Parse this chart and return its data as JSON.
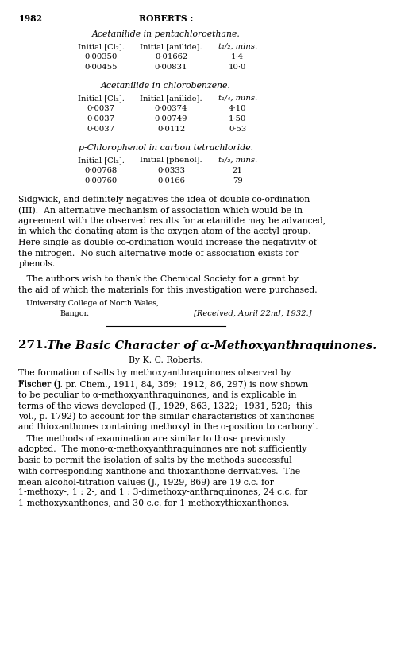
{
  "page_number": "1982",
  "header_center": "ROBERTS :",
  "bg_color": "#ffffff",
  "section1_title": "Acetanilide in pentachloroethane.",
  "section1_col1_header": "Initial [Cl₂].",
  "section1_col2_header": "Initial [anilide].",
  "section1_col3_header": "t₁/₂, mins.",
  "section1_data": [
    [
      "0·00350",
      "0·01662",
      "1·4"
    ],
    [
      "0·00455",
      "0·00831",
      "10·0"
    ]
  ],
  "section2_title": "Acetanilide in chlorobenzene.",
  "section2_col1_header": "Initial [Cl₂].",
  "section2_col2_header": "Initial [anilide].",
  "section2_col3_header": "t₁/₄, mins.",
  "section2_data": [
    [
      "0·0037",
      "0·00374",
      "4·10"
    ],
    [
      "0·0037",
      "0·00749",
      "1·50"
    ],
    [
      "0·0037",
      "0·0112",
      "0·53"
    ]
  ],
  "section3_title": "p-Chlorophenol in carbon tetrachloride.",
  "section3_col1_header": "Initial [Cl₂].",
  "section3_col2_header": "Initial [phenol].",
  "section3_col3_header": "t₁/₂, mins.",
  "section3_data": [
    [
      "0·00768",
      "0·0333",
      "21"
    ],
    [
      "0·00760",
      "0·0166",
      "79"
    ]
  ],
  "paragraph1": "Sidgwick, and definitely negatives the idea of double co-ordination (III).  An alternative mechanism of association which would be in agreement with the observed results for acetanilide may be advanced, in which the donating atom is the oxygen atom of the acetyl group. Here single as double co-ordination would increase the negativity of the nitrogen.  No such alternative mode of association exists for phenols.",
  "paragraph2": "   The authors wish to thank the Chemical Society for a grant by the aid of which the materials for this investigation were purchased.",
  "institution1": "University College of North Wales,",
  "institution2": "Bangor.",
  "received": "[Received, April 22nd, 1932.]",
  "article_num": "271.",
  "article_title": "The Basic Character of α-Methoxyanthraquinones.",
  "article_author": "By K. C. Roberts.",
  "body_para1_line1": "The formation of salts by methoxyanthraquinones observed by",
  "body_para1": "The formation of salts by methoxyanthraquinones observed by Fischer (J. pr. Chem., 1911, 84, 369;  1912, 86, 297) is now shown to be peculiar to α-methoxyanthraquinones, and is explicable in terms of the views developed (J., 1929, 863, 1322;  1931, 520;  this vol., p. 1792) to account for the similar characteristics of xanthones and thioxanthones containing methoxyl in the o-position to carbonyl.",
  "body_para2": "   The methods of examination are similar to those previously adopted.  The mono-α-methoxyanthraquinones are not sufficiently basic to permit the isolation of salts by the methods successful with corresponding xanthone and thioxanthone derivatives.  The mean alcohol-titration values (J., 1929, 869) are 19 c.c. for 1-methoxy-, 1 : 2-, and 1 : 3-dimethoxy-anthraquinones, 24 c.c. for 1-methoxyxanthones, and 30 c.c. for 1-methoxythioxanthones."
}
